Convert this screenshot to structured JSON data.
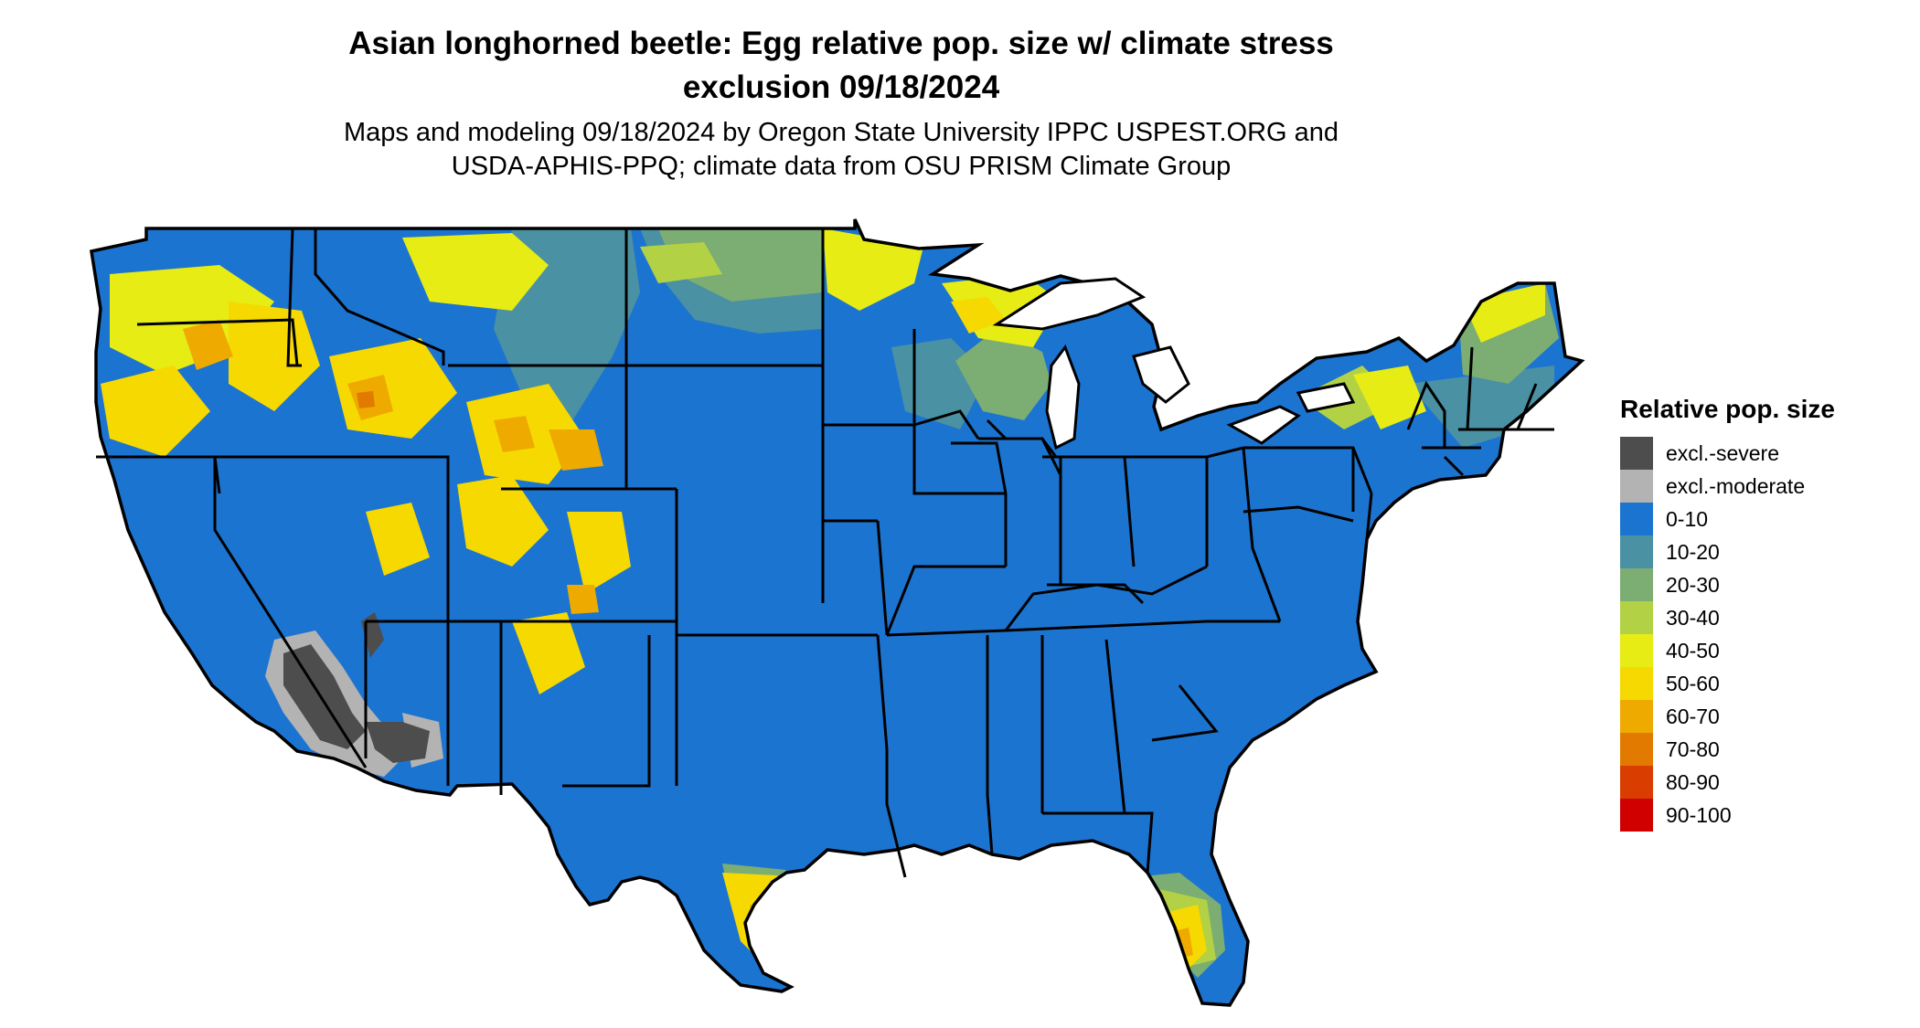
{
  "title_line1": "Asian longhorned beetle: Egg relative pop. size w/ climate stress",
  "title_line2": "exclusion 09/18/2024",
  "subtitle_line1": "Maps and modeling 09/18/2024 by Oregon State University IPPC USPEST.ORG and",
  "subtitle_line2": "USDA-APHIS-PPQ; climate data from OSU PRISM Climate Group",
  "legend": {
    "title": "Relative pop. size",
    "items": [
      {
        "label": "excl.-severe",
        "color": "#4d4d4d"
      },
      {
        "label": "excl.-moderate",
        "color": "#b3b3b3"
      },
      {
        "label": "0-10",
        "color": "#1c74d1"
      },
      {
        "label": "10-20",
        "color": "#4a91a3"
      },
      {
        "label": "20-30",
        "color": "#7cad73"
      },
      {
        "label": "30-40",
        "color": "#b3d144"
      },
      {
        "label": "40-50",
        "color": "#e6ec14"
      },
      {
        "label": "50-60",
        "color": "#f6d900"
      },
      {
        "label": "60-70",
        "color": "#efaa00"
      },
      {
        "label": "70-80",
        "color": "#e27a00"
      },
      {
        "label": "80-90",
        "color": "#d93d00"
      },
      {
        "label": "90-100",
        "color": "#d10000"
      }
    ]
  }
}
